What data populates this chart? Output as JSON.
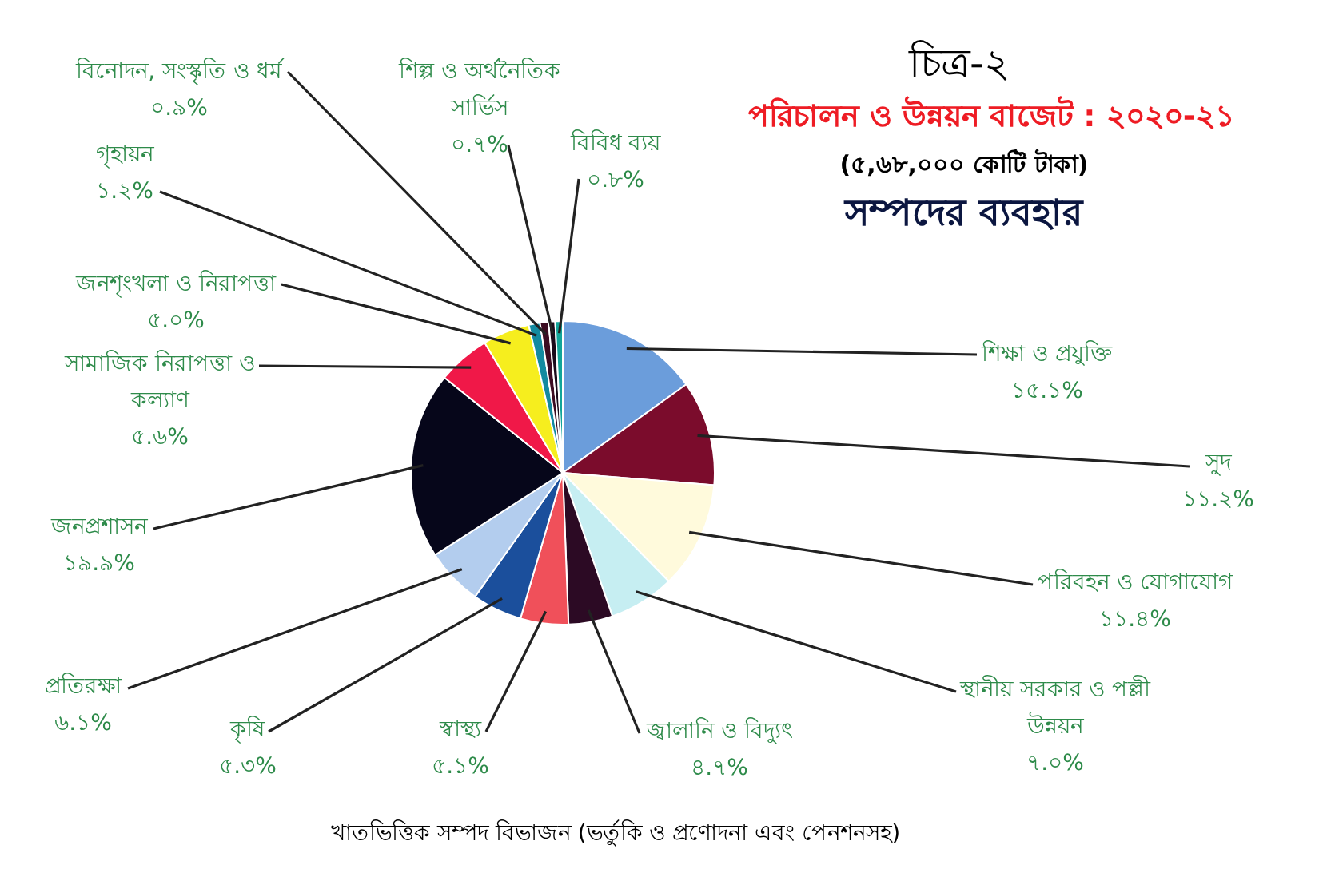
{
  "chart_data": {
    "type": "pie",
    "title": "চিত্র-২",
    "subtitle": "পরিচালন ও উন্নয়ন বাজেট : ২০২০-২১",
    "annotations": [
      "(৫,৬৮,০০০ কোটি টাকা)",
      "সম্পদের ব্যবহার",
      "খাতভিত্তিক সম্পদ বিভাজন (ভর্তুকি ও প্রণোদনা এবং পেনশনসহ)"
    ],
    "categories": [
      "শিক্ষা ও প্রযুক্তি",
      "সুদ",
      "পরিবহন ও যোগাযোগ",
      "স্থানীয় সরকার ও পল্লী উন্নয়ন",
      "জ্বালানি ও বিদ্যুৎ",
      "স্বাস্থ্য",
      "কৃষি",
      "প্রতিরক্ষা",
      "জনপ্রশাসন",
      "সামাজিক নিরাপত্তা ও কল্যাণ",
      "জনশৃংখলা ও নিরাপত্তা",
      "গৃহায়ন",
      "বিনোদন, সংস্কৃতি ও ধর্ম",
      "শিল্প ও অর্থনৈতিক সার্ভিস",
      "বিবিধ ব্যয়"
    ],
    "values": [
      15.1,
      11.2,
      11.4,
      7.0,
      4.7,
      5.1,
      5.3,
      6.1,
      19.9,
      5.6,
      5.0,
      1.2,
      0.9,
      0.7,
      0.8
    ],
    "value_labels": [
      "১৫.১%",
      "১১.২%",
      "১১.৪%",
      "৭.০%",
      "৪.৭%",
      "৫.১%",
      "৫.৩%",
      "৬.১%",
      "১৯.৯%",
      "৫.৬%",
      "৫.০%",
      "১.২%",
      "০.৯%",
      "০.৭%",
      "০.৮%"
    ],
    "colors": [
      "#6b9ddb",
      "#7b0c2c",
      "#fffadc",
      "#c6eef2",
      "#2c0a24",
      "#f0505a",
      "#1b4f9c",
      "#b3cdee",
      "#06061a",
      "#f01848",
      "#f6ee1e",
      "#138aa0",
      "#3c0c22",
      "#1a0a1a",
      "#12a59a"
    ]
  }
}
